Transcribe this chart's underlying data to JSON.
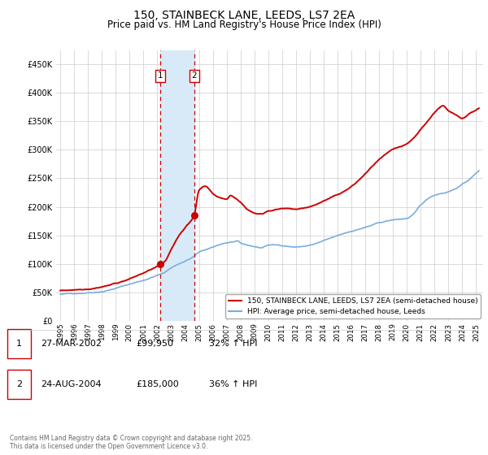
{
  "title": "150, STAINBECK LANE, LEEDS, LS7 2EA",
  "subtitle": "Price paid vs. HM Land Registry's House Price Index (HPI)",
  "title_fontsize": 10,
  "subtitle_fontsize": 8.5,
  "ylim": [
    0,
    475000
  ],
  "yticks": [
    0,
    50000,
    100000,
    150000,
    200000,
    250000,
    300000,
    350000,
    400000,
    450000
  ],
  "ytick_labels": [
    "£0",
    "£50K",
    "£100K",
    "£150K",
    "£200K",
    "£250K",
    "£300K",
    "£350K",
    "£400K",
    "£450K"
  ],
  "background_color": "#ffffff",
  "grid_color": "#cccccc",
  "sale1_date_x": 2002.23,
  "sale1_price": 99950,
  "sale2_date_x": 2004.65,
  "sale2_price": 185000,
  "hpi_line_color": "#7aaddb",
  "price_line_color": "#cc0000",
  "shade_color": "#d8eaf8",
  "legend_label_price": "150, STAINBECK LANE, LEEDS, LS7 2EA (semi-detached house)",
  "legend_label_hpi": "HPI: Average price, semi-detached house, Leeds",
  "table_row1": [
    "1",
    "27-MAR-2002",
    "£99,950",
    "32% ↑ HPI"
  ],
  "table_row2": [
    "2",
    "24-AUG-2004",
    "£185,000",
    "36% ↑ HPI"
  ],
  "footer": "Contains HM Land Registry data © Crown copyright and database right 2025.\nThis data is licensed under the Open Government Licence v3.0.",
  "xlim_left": 1994.7,
  "xlim_right": 2025.5
}
